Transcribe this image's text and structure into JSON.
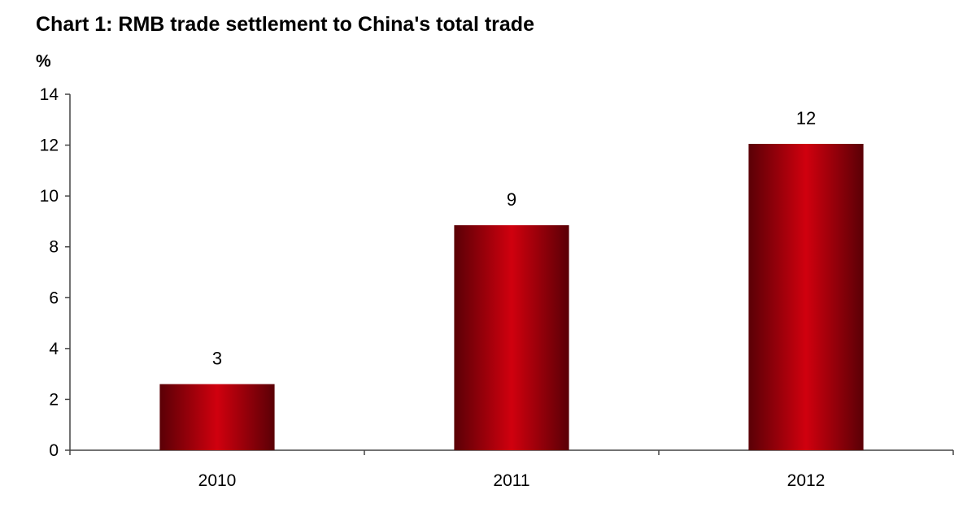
{
  "chart_data": {
    "type": "bar",
    "title": "Chart 1: RMB trade settlement to China's total trade",
    "ylabel": "%",
    "xlabel": "",
    "categories": [
      "2010",
      "2011",
      "2012"
    ],
    "values": [
      2.6,
      8.85,
      12.05
    ],
    "data_labels": [
      "3",
      "9",
      "12"
    ],
    "ylim": [
      0,
      14
    ],
    "yticks": [
      0,
      2,
      4,
      6,
      8,
      10,
      12,
      14
    ],
    "grid": false,
    "legend": "none",
    "colors": {
      "bar_edge": "#5a0006",
      "bar_center": "#d0000e",
      "axis": "#444444"
    }
  }
}
